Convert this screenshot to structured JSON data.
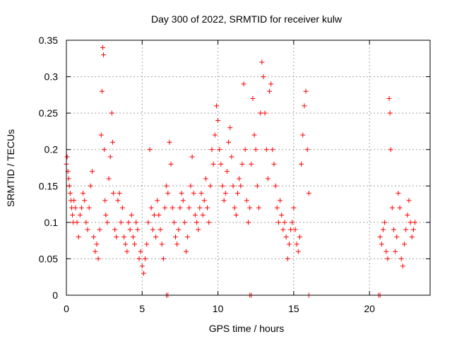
{
  "chart_data": {
    "type": "scatter",
    "title": "Day 300 of 2022, SRMTID for receiver kulw",
    "xlabel": "GPS time / hours",
    "ylabel": "SRMTID / TECUs",
    "xlim": [
      0,
      24
    ],
    "ylim": [
      0,
      0.35
    ],
    "xticks": [
      0,
      5,
      10,
      15,
      20
    ],
    "xtick_labels": [
      "0",
      "5",
      "10",
      "15",
      "20"
    ],
    "yticks": [
      0,
      0.05,
      0.1,
      0.15,
      0.2,
      0.25,
      0.3,
      0.35
    ],
    "ytick_labels": [
      "0",
      "0.05",
      "0.1",
      "0.15",
      "0.2",
      "0.25",
      "0.3",
      "0.35"
    ],
    "grid": true,
    "marker": "plus",
    "color": "#ff0000",
    "series": [
      {
        "name": "SRMTID",
        "points": [
          [
            0.0,
            0.18
          ],
          [
            0.05,
            0.19
          ],
          [
            0.1,
            0.17
          ],
          [
            0.15,
            0.16
          ],
          [
            0.2,
            0.15
          ],
          [
            0.25,
            0.14
          ],
          [
            0.3,
            0.13
          ],
          [
            0.35,
            0.12
          ],
          [
            0.4,
            0.11
          ],
          [
            0.45,
            0.1
          ],
          [
            0.5,
            0.13
          ],
          [
            0.6,
            0.12
          ],
          [
            0.7,
            0.1
          ],
          [
            0.8,
            0.08
          ],
          [
            0.9,
            0.11
          ],
          [
            1.0,
            0.12
          ],
          [
            1.1,
            0.14
          ],
          [
            1.2,
            0.13
          ],
          [
            1.3,
            0.1
          ],
          [
            1.4,
            0.09
          ],
          [
            1.5,
            0.12
          ],
          [
            1.6,
            0.15
          ],
          [
            1.7,
            0.17
          ],
          [
            1.8,
            0.08
          ],
          [
            1.9,
            0.06
          ],
          [
            2.0,
            0.07
          ],
          [
            2.1,
            0.05
          ],
          [
            2.2,
            0.09
          ],
          [
            2.3,
            0.22
          ],
          [
            2.35,
            0.28
          ],
          [
            2.4,
            0.34
          ],
          [
            2.45,
            0.33
          ],
          [
            2.5,
            0.2
          ],
          [
            2.55,
            0.13
          ],
          [
            2.6,
            0.11
          ],
          [
            2.7,
            0.1
          ],
          [
            2.8,
            0.16
          ],
          [
            2.9,
            0.19
          ],
          [
            3.0,
            0.25
          ],
          [
            3.05,
            0.21
          ],
          [
            3.1,
            0.14
          ],
          [
            3.2,
            0.09
          ],
          [
            3.3,
            0.08
          ],
          [
            3.4,
            0.13
          ],
          [
            3.5,
            0.14
          ],
          [
            3.6,
            0.1
          ],
          [
            3.7,
            0.12
          ],
          [
            3.8,
            0.08
          ],
          [
            3.9,
            0.07
          ],
          [
            4.0,
            0.06
          ],
          [
            4.1,
            0.1
          ],
          [
            4.2,
            0.09
          ],
          [
            4.3,
            0.11
          ],
          [
            4.4,
            0.08
          ],
          [
            4.5,
            0.07
          ],
          [
            4.6,
            0.1
          ],
          [
            4.7,
            0.09
          ],
          [
            4.8,
            0.05
          ],
          [
            4.9,
            0.06
          ],
          [
            5.0,
            0.04
          ],
          [
            5.1,
            0.03
          ],
          [
            5.2,
            0.05
          ],
          [
            5.3,
            0.07
          ],
          [
            5.4,
            0.1
          ],
          [
            5.5,
            0.2
          ],
          [
            5.6,
            0.12
          ],
          [
            5.7,
            0.09
          ],
          [
            5.8,
            0.11
          ],
          [
            5.9,
            0.08
          ],
          [
            6.0,
            0.13
          ],
          [
            6.1,
            0.11
          ],
          [
            6.2,
            0.09
          ],
          [
            6.3,
            0.07
          ],
          [
            6.4,
            0.05
          ],
          [
            6.5,
            0.12
          ],
          [
            6.6,
            0.15
          ],
          [
            6.7,
            0.14
          ],
          [
            6.8,
            0.21
          ],
          [
            6.9,
            0.18
          ],
          [
            7.0,
            0.12
          ],
          [
            7.1,
            0.1
          ],
          [
            7.2,
            0.08
          ],
          [
            7.3,
            0.07
          ],
          [
            7.4,
            0.09
          ],
          [
            7.5,
            0.12
          ],
          [
            7.6,
            0.14
          ],
          [
            7.7,
            0.13
          ],
          [
            7.8,
            0.1
          ],
          [
            7.9,
            0.06
          ],
          [
            8.0,
            0.08
          ],
          [
            8.1,
            0.12
          ],
          [
            8.2,
            0.15
          ],
          [
            8.3,
            0.19
          ],
          [
            8.4,
            0.14
          ],
          [
            8.5,
            0.11
          ],
          [
            8.6,
            0.1
          ],
          [
            8.7,
            0.09
          ],
          [
            8.8,
            0.12
          ],
          [
            8.9,
            0.14
          ],
          [
            9.0,
            0.11
          ],
          [
            9.1,
            0.13
          ],
          [
            9.2,
            0.16
          ],
          [
            9.3,
            0.12
          ],
          [
            9.4,
            0.1
          ],
          [
            9.5,
            0.15
          ],
          [
            9.6,
            0.2
          ],
          [
            9.7,
            0.18
          ],
          [
            9.8,
            0.22
          ],
          [
            9.9,
            0.26
          ],
          [
            10.0,
            0.24
          ],
          [
            10.1,
            0.2
          ],
          [
            10.2,
            0.18
          ],
          [
            10.3,
            0.15
          ],
          [
            10.4,
            0.13
          ],
          [
            10.5,
            0.14
          ],
          [
            10.6,
            0.17
          ],
          [
            10.7,
            0.21
          ],
          [
            10.8,
            0.23
          ],
          [
            10.9,
            0.19
          ],
          [
            11.0,
            0.15
          ],
          [
            11.1,
            0.12
          ],
          [
            11.2,
            0.11
          ],
          [
            11.3,
            0.14
          ],
          [
            11.4,
            0.16
          ],
          [
            11.5,
            0.15
          ],
          [
            11.6,
            0.18
          ],
          [
            11.7,
            0.29
          ],
          [
            11.8,
            0.2
          ],
          [
            11.9,
            0.13
          ],
          [
            12.0,
            0.1
          ],
          [
            12.1,
            0.12
          ],
          [
            12.2,
            0.18
          ],
          [
            12.3,
            0.27
          ],
          [
            12.4,
            0.22
          ],
          [
            12.5,
            0.2
          ],
          [
            12.6,
            0.15
          ],
          [
            12.7,
            0.12
          ],
          [
            12.8,
            0.25
          ],
          [
            12.9,
            0.32
          ],
          [
            13.0,
            0.3
          ],
          [
            13.1,
            0.25
          ],
          [
            13.2,
            0.2
          ],
          [
            13.3,
            0.16
          ],
          [
            13.4,
            0.28
          ],
          [
            13.5,
            0.29
          ],
          [
            13.6,
            0.2
          ],
          [
            13.7,
            0.18
          ],
          [
            13.8,
            0.15
          ],
          [
            13.9,
            0.12
          ],
          [
            14.0,
            0.1
          ],
          [
            14.1,
            0.13
          ],
          [
            14.2,
            0.11
          ],
          [
            14.3,
            0.09
          ],
          [
            14.4,
            0.1
          ],
          [
            14.5,
            0.08
          ],
          [
            14.6,
            0.05
          ],
          [
            14.7,
            0.07
          ],
          [
            14.8,
            0.09
          ],
          [
            14.9,
            0.1
          ],
          [
            15.0,
            0.12
          ],
          [
            15.1,
            0.09
          ],
          [
            15.2,
            0.07
          ],
          [
            15.3,
            0.06
          ],
          [
            15.4,
            0.08
          ],
          [
            15.5,
            0.18
          ],
          [
            15.6,
            0.22
          ],
          [
            15.7,
            0.26
          ],
          [
            15.8,
            0.28
          ],
          [
            15.9,
            0.2
          ],
          [
            16.0,
            0.14
          ],
          [
            20.7,
            0.08
          ],
          [
            20.8,
            0.07
          ],
          [
            20.9,
            0.09
          ],
          [
            21.0,
            0.1
          ],
          [
            21.1,
            0.06
          ],
          [
            21.2,
            0.05
          ],
          [
            21.3,
            0.27
          ],
          [
            21.35,
            0.25
          ],
          [
            21.4,
            0.2
          ],
          [
            21.5,
            0.12
          ],
          [
            21.6,
            0.09
          ],
          [
            21.7,
            0.06
          ],
          [
            21.8,
            0.08
          ],
          [
            21.9,
            0.14
          ],
          [
            22.0,
            0.12
          ],
          [
            22.1,
            0.05
          ],
          [
            22.2,
            0.04
          ],
          [
            22.3,
            0.07
          ],
          [
            22.4,
            0.09
          ],
          [
            22.5,
            0.11
          ],
          [
            22.6,
            0.13
          ],
          [
            22.7,
            0.1
          ],
          [
            22.8,
            0.08
          ],
          [
            22.9,
            0.09
          ],
          [
            23.0,
            0.1
          ],
          [
            6.6,
            0.0
          ],
          [
            6.7,
            0.0
          ],
          [
            12.1,
            0.0
          ],
          [
            12.2,
            0.0
          ],
          [
            16.0,
            0.0
          ],
          [
            20.6,
            0.0
          ],
          [
            20.7,
            0.0
          ]
        ]
      }
    ]
  }
}
